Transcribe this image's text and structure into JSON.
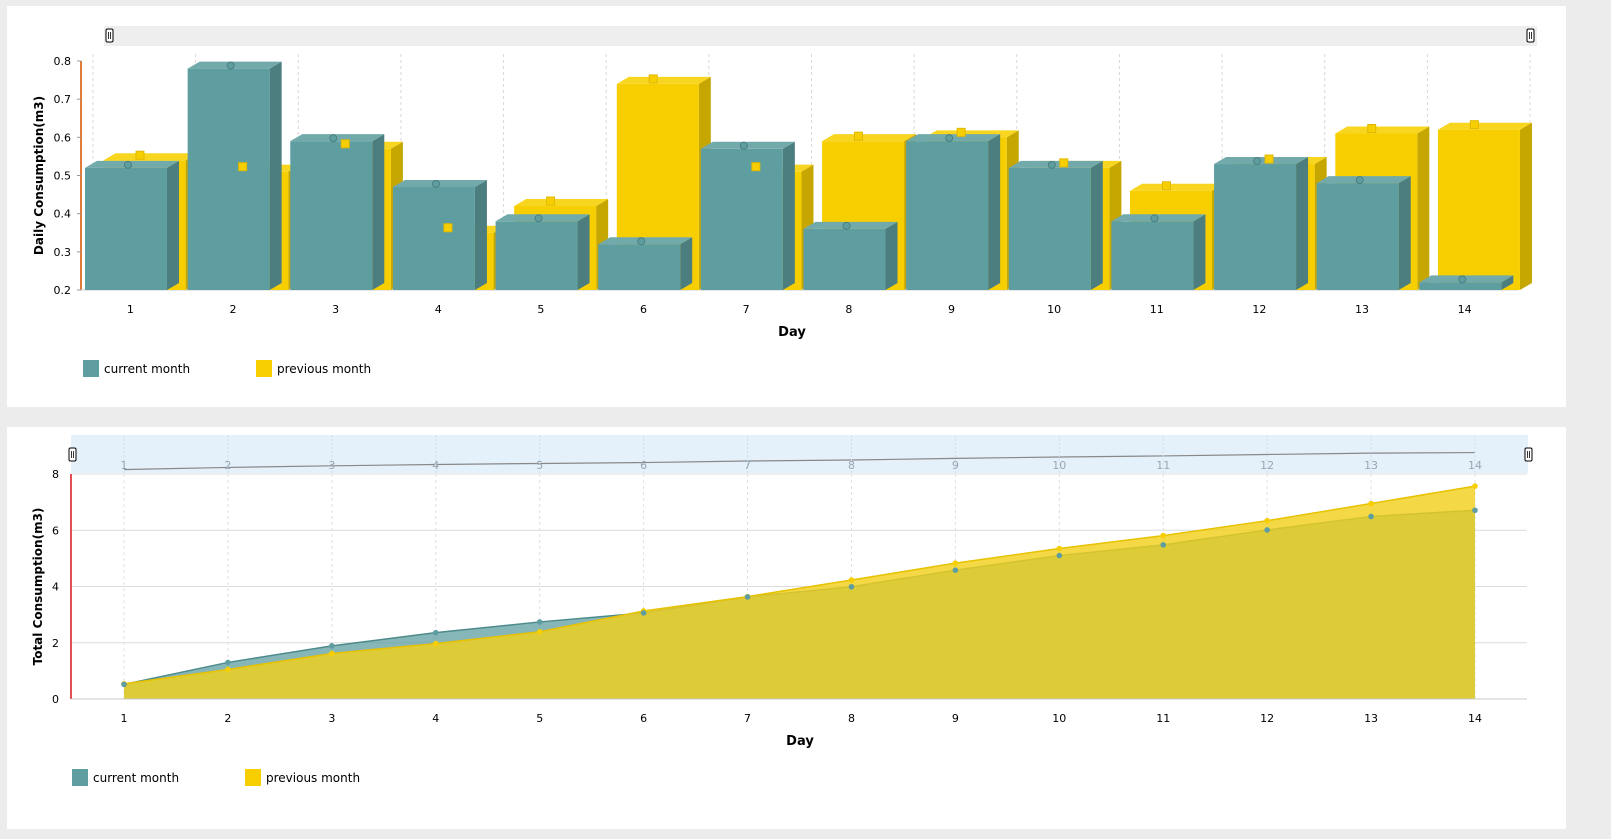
{
  "chart_data": [
    {
      "type": "bar",
      "style": "3d-clustered",
      "categories": [
        "1",
        "2",
        "3",
        "4",
        "5",
        "6",
        "7",
        "8",
        "9",
        "10",
        "11",
        "12",
        "13",
        "14"
      ],
      "series": [
        {
          "name": "current month",
          "values": [
            0.52,
            0.78,
            0.59,
            0.47,
            0.38,
            0.32,
            0.57,
            0.36,
            0.59,
            0.52,
            0.38,
            0.53,
            0.48,
            0.22
          ]
        },
        {
          "name": "previous month",
          "values": [
            0.54,
            0.51,
            0.57,
            0.35,
            0.42,
            0.74,
            0.51,
            0.59,
            0.6,
            0.52,
            0.46,
            0.53,
            0.61,
            0.62
          ]
        }
      ],
      "xlabel": "Day",
      "ylabel": "Daily Consumption(m3)",
      "ylim": [
        0.2,
        0.8
      ],
      "yticks": [
        "0.2",
        "0.3",
        "0.4",
        "0.5",
        "0.6",
        "0.7",
        "0.8"
      ],
      "grid": "vertical-dashed",
      "legend": "bottom-left",
      "scrollbar": "top",
      "colors": {
        "current": "#5f9ea0",
        "previous": "#f7cf00"
      }
    },
    {
      "type": "area",
      "categories": [
        "1",
        "2",
        "3",
        "4",
        "5",
        "6",
        "7",
        "8",
        "9",
        "10",
        "11",
        "12",
        "13",
        "14"
      ],
      "series": [
        {
          "name": "current month",
          "values": [
            0.52,
            1.3,
            1.89,
            2.36,
            2.74,
            3.06,
            3.63,
            3.99,
            4.58,
            5.1,
            5.48,
            6.01,
            6.49,
            6.71
          ]
        },
        {
          "name": "previous month",
          "values": [
            0.54,
            1.05,
            1.62,
            1.97,
            2.39,
            3.13,
            3.64,
            4.23,
            4.83,
            5.35,
            5.81,
            6.34,
            6.95,
            7.57
          ]
        }
      ],
      "xlabel": "Day",
      "ylabel": "Total Consumption(m3)",
      "ylim": [
        0,
        8
      ],
      "yticks": [
        "0",
        "2",
        "4",
        "6",
        "8"
      ],
      "grid": "horizontal-solid-and-vertical-dashed",
      "legend": "bottom-left",
      "scrollbar": "top-with-preview",
      "colors": {
        "current": "#5f9ea0",
        "previous": "#f7cf00"
      }
    }
  ]
}
